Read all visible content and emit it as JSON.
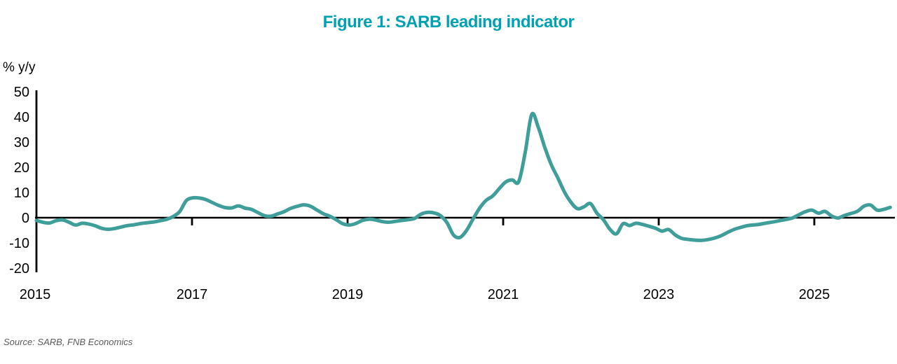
{
  "figure": {
    "title": "Figure 1: SARB leading indicator",
    "source": "Source: SARB, FNB Economics"
  },
  "colors": {
    "title": "#00A2B2",
    "line": "#3F9E9A",
    "axis": "#000000",
    "tick_label": "#000000",
    "source_text": "#5A5A5A",
    "background": "#FFFFFF"
  },
  "chart_data": {
    "type": "line",
    "title": "Figure 1: SARB leading indicator",
    "ylabel": "% y/y",
    "xlabel": "",
    "x_start": "2015-01",
    "frequency": "monthly",
    "ylim": [
      -20,
      50
    ],
    "y_ticks": [
      50,
      40,
      30,
      20,
      10,
      0,
      "-10",
      "-20"
    ],
    "x_tick_years": [
      2015,
      2017,
      2019,
      2021,
      2023,
      2025
    ],
    "grid": false,
    "legend": "none",
    "series": [
      {
        "name": "SARB leading indicator",
        "values": [
          -1.1,
          -1.8,
          -2.1,
          -1.2,
          -0.9,
          -1.8,
          -2.9,
          -2.2,
          -2.5,
          -3.2,
          -4.2,
          -4.6,
          -4.3,
          -3.7,
          -3.1,
          -2.8,
          -2.3,
          -2.0,
          -1.7,
          -1.2,
          -0.6,
          0.5,
          2.5,
          6.8,
          7.9,
          7.8,
          7.2,
          6.0,
          4.8,
          4.0,
          3.9,
          4.7,
          3.8,
          3.3,
          2.0,
          0.8,
          0.6,
          1.5,
          2.4,
          3.7,
          4.5,
          5.1,
          4.6,
          3.1,
          1.6,
          0.6,
          -0.8,
          -2.4,
          -2.9,
          -2.3,
          -1.1,
          -0.6,
          -0.9,
          -1.5,
          -1.8,
          -1.5,
          -1.1,
          -0.8,
          -0.3,
          1.4,
          2.1,
          1.9,
          0.8,
          -2.0,
          -6.9,
          -7.8,
          -5.0,
          -0.5,
          3.8,
          6.9,
          8.6,
          11.5,
          14.2,
          15.0,
          14.3,
          26.0,
          41.0,
          35.9,
          27.9,
          21.0,
          15.8,
          10.3,
          6.2,
          3.6,
          4.3,
          5.6,
          1.8,
          -0.8,
          -4.6,
          -6.4,
          -2.4,
          -3.1,
          -2.2,
          -2.7,
          -3.4,
          -4.2,
          -5.3,
          -4.7,
          -6.8,
          -8.2,
          -8.6,
          -8.9,
          -9.0,
          -8.7,
          -8.1,
          -7.2,
          -5.9,
          -4.7,
          -3.9,
          -3.2,
          -2.9,
          -2.6,
          -2.1,
          -1.7,
          -1.2,
          -0.7,
          -0.1,
          1.2,
          2.4,
          3.0,
          1.8,
          2.5,
          0.7,
          -0.1,
          0.9,
          1.7,
          2.6,
          4.6,
          5.0,
          3.0,
          3.3,
          4.1
        ]
      }
    ]
  }
}
